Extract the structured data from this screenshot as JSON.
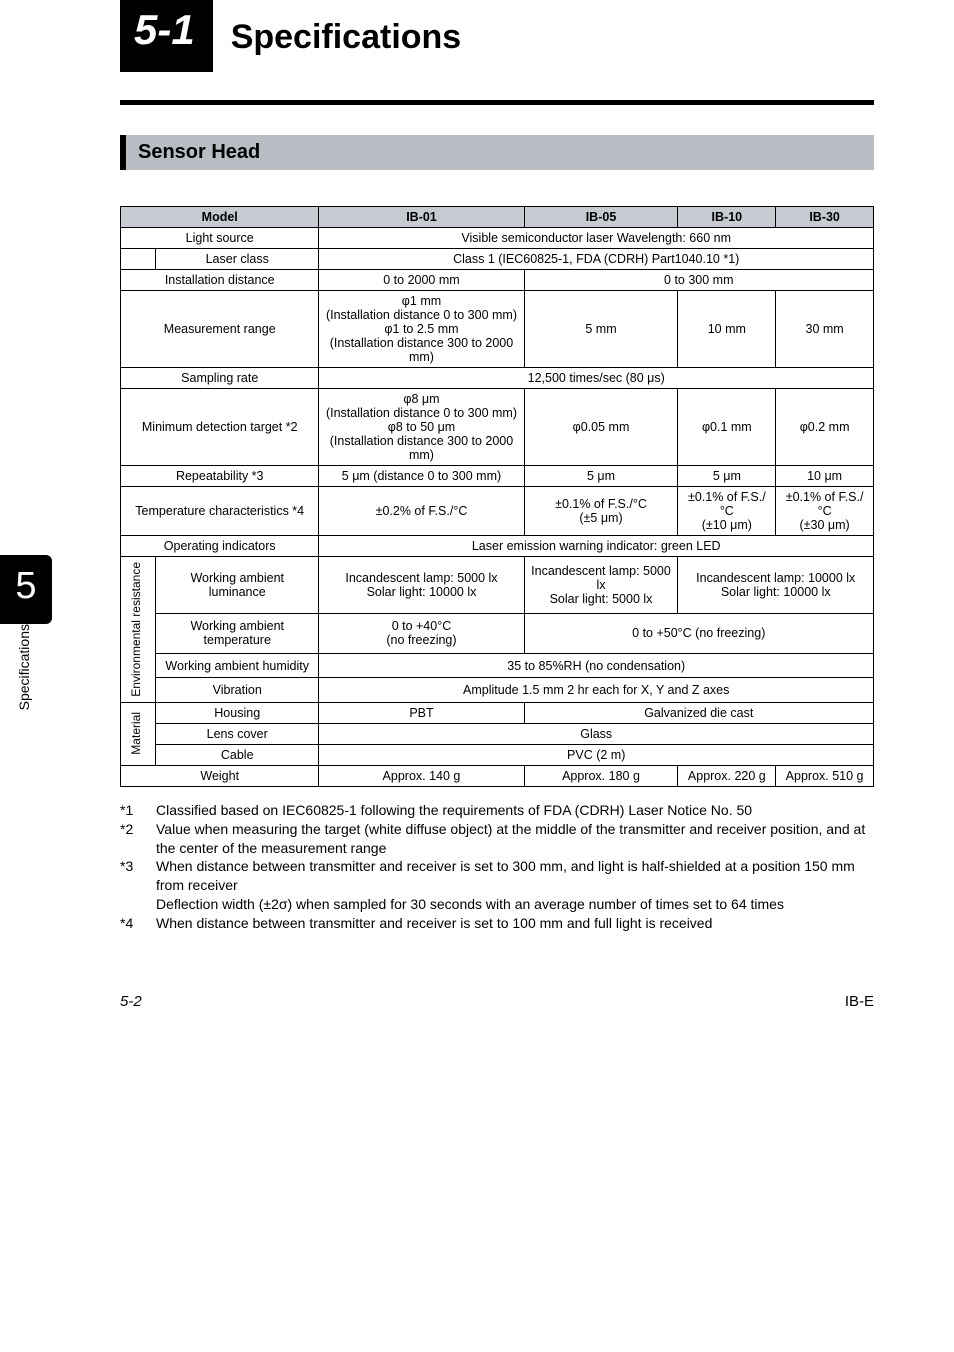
{
  "section_number": "5-1",
  "section_title": "Specifications",
  "sub_header": "Sensor Head",
  "side_tab_num": "5",
  "side_tab_text": "Specifications",
  "table": {
    "header": {
      "model": "Model",
      "c1": "IB-01",
      "c2": "IB-05",
      "c3": "IB-10",
      "c4": "IB-30"
    },
    "rows": {
      "light_source": {
        "label": "Light source",
        "val": "Visible semiconductor laser Wavelength: 660 nm"
      },
      "laser_class": {
        "label": "Laser class",
        "val": "Class 1 (IEC60825-1, FDA (CDRH) Part1040.10 *1)"
      },
      "install_dist": {
        "label": "Installation distance",
        "c1": "0 to 2000 mm",
        "c234": "0 to 300 mm"
      },
      "meas_range": {
        "label": "Measurement range",
        "c1": "φ1 mm\n(Installation distance 0 to 300 mm)\nφ1 to 2.5 mm\n(Installation distance 300 to 2000 mm)",
        "c2": "5 mm",
        "c3": "10 mm",
        "c4": "30 mm"
      },
      "sampling": {
        "label": "Sampling rate",
        "val": "12,500 times/sec (80 μs)"
      },
      "min_detect": {
        "label": "Minimum detection target *2",
        "c1": "φ8 μm\n(Installation distance 0 to 300 mm)\nφ8 to 50 μm\n(Installation distance 300 to 2000 mm)",
        "c2": "φ0.05 mm",
        "c3": "φ0.1 mm",
        "c4": "φ0.2 mm"
      },
      "repeat": {
        "label": "Repeatability *3",
        "c1": "5 μm (distance 0 to 300 mm)",
        "c2": "5 μm",
        "c3": "5 μm",
        "c4": "10 μm"
      },
      "temp_char": {
        "label": "Temperature characteristics *4",
        "c1": "±0.2% of F.S./°C",
        "c2": "±0.1% of F.S./°C\n(±5 μm)",
        "c3": "±0.1% of F.S./°C\n(±10 μm)",
        "c4": "±0.1% of F.S./°C\n(±30 μm)"
      },
      "op_ind": {
        "label": "Operating indicators",
        "val": "Laser emission warning indicator: green LED"
      },
      "env_group": "Environmental resistance",
      "env": {
        "lum": {
          "label": "Working ambient luminance",
          "c1": "Incandescent lamp: 5000 lx\nSolar light: 10000 lx",
          "c2": "Incandescent lamp: 5000 lx\nSolar light: 5000 lx",
          "c34": "Incandescent lamp: 10000 lx\nSolar light: 10000 lx"
        },
        "temp": {
          "label": "Working ambient temperature",
          "c1": "0 to +40°C\n(no freezing)",
          "c234": "0 to +50°C (no freezing)"
        },
        "hum": {
          "label": "Working ambient humidity",
          "val": "35 to 85%RH (no condensation)"
        },
        "vib": {
          "label": "Vibration",
          "val": "Amplitude 1.5 mm 2 hr each for X, Y and Z axes"
        }
      },
      "mat_group": "Material",
      "mat": {
        "housing": {
          "label": "Housing",
          "c1": "PBT",
          "c234": "Galvanized die cast"
        },
        "lens": {
          "label": "Lens cover",
          "val": "Glass"
        },
        "cable": {
          "label": "Cable",
          "val": "PVC (2 m)"
        }
      },
      "weight": {
        "label": "Weight",
        "c1": "Approx. 140 g",
        "c2": "Approx. 180 g",
        "c3": "Approx. 220 g",
        "c4": "Approx. 510 g"
      }
    }
  },
  "notes": [
    {
      "k": "*1",
      "t": "Classified based on IEC60825-1 following the requirements of FDA (CDRH) Laser Notice No. 50"
    },
    {
      "k": "*2",
      "t": "Value when measuring the target (white diffuse object) at the middle of the transmitter and receiver position, and at the center of the measurement range"
    },
    {
      "k": "*3",
      "t": "When distance between transmitter and receiver is set to 300 mm, and light is half-shielded at a position 150 mm from receiver\nDeflection width (±2σ) when sampled for 30 seconds with an average number of times set to 64 times"
    },
    {
      "k": "*4",
      "t": "When distance between transmitter and receiver is set to 100 mm and full light is received"
    }
  ],
  "footer_left": "5-2",
  "footer_right": "IB-E"
}
